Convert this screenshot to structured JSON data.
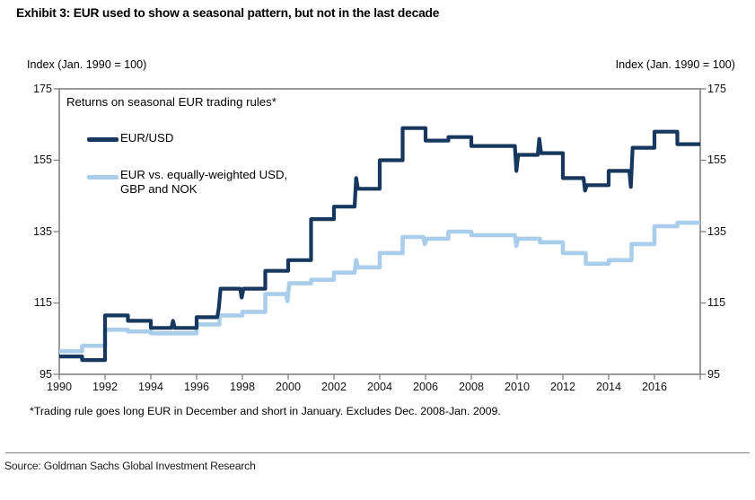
{
  "title": "Exhibit 3: EUR used to show a seasonal pattern, but not in the last decade",
  "axis_notes": {
    "left": "Index (Jan. 1990 = 100)",
    "right": "Index (Jan. 1990 = 100)"
  },
  "chart_subtitle": "Returns on seasonal EUR trading rules*",
  "legend": {
    "items": [
      {
        "label_line1": "EUR/USD",
        "label_line2": "",
        "color": "#17375e"
      },
      {
        "label_line1": "EUR vs. equally-weighted USD,",
        "label_line2": "GBP and NOK",
        "color": "#a9cdea"
      }
    ]
  },
  "footnote": "*Trading rule goes long EUR in December and short in January. Excludes Dec. 2008-Jan. 2009.",
  "source": "Source: Goldman Sachs Global Investment Research",
  "colors": {
    "eur_usd_line": "#17375e",
    "basket_line": "#a9cdea",
    "axis": "#808080",
    "text": "#000000"
  },
  "chart_data": {
    "type": "line",
    "style": "step",
    "title": "Returns on seasonal EUR trading rules*",
    "ylabel_left": "Index (Jan. 1990 = 100)",
    "ylabel_right": "Index (Jan. 1990 = 100)",
    "ylim": [
      95,
      175
    ],
    "yticks": [
      175,
      155,
      135,
      115,
      95
    ],
    "xtick_years": [
      1990,
      1992,
      1994,
      1996,
      1998,
      2000,
      2002,
      2004,
      2006,
      2008,
      2010,
      2012,
      2014,
      2016
    ],
    "x_axis_end": 2018,
    "grid": false,
    "legend_position": "top-left-inside",
    "x": [
      1990,
      1991,
      1992,
      1993,
      1994,
      1995,
      1996,
      1997,
      1998,
      1999,
      2000,
      2001,
      2002,
      2003,
      2004,
      2005,
      2006,
      2007,
      2008,
      2009,
      2010,
      2011,
      2012,
      2013,
      2014,
      2015,
      2016,
      2017
    ],
    "series": [
      {
        "name": "EUR/USD",
        "color": "#17375e",
        "values": [
          100,
          99,
          111.5,
          110,
          108,
          108,
          111,
          119,
          119,
          124,
          127,
          138.5,
          142,
          147,
          155,
          164,
          160.5,
          161.5,
          159,
          159,
          156.5,
          157,
          150,
          148,
          152,
          158.5,
          163,
          159.5
        ],
        "jan_spikes": [
          {
            "at": 1995,
            "v": 110
          },
          {
            "at": 1997,
            "v": 113.5
          },
          {
            "at": 1998,
            "v": 116.5
          },
          {
            "at": 2003,
            "v": 150
          },
          {
            "at": 2010,
            "v": 152
          },
          {
            "at": 2011,
            "v": 161
          },
          {
            "at": 2013,
            "v": 146.5
          },
          {
            "at": 2015,
            "v": 147.5
          }
        ]
      },
      {
        "name": "EUR vs. equally-weighted USD, GBP and NOK",
        "color": "#a9cdea",
        "values": [
          101.5,
          103,
          107.5,
          107,
          106.5,
          106.5,
          109,
          111.5,
          112.5,
          117.5,
          120.5,
          121.5,
          123.5,
          125,
          129,
          133.5,
          133,
          135,
          134,
          134,
          133,
          132,
          129,
          126,
          127,
          131.5,
          136.5,
          137.5
        ],
        "jan_spikes": [
          {
            "at": 2000,
            "v": 115.5
          },
          {
            "at": 2003,
            "v": 127
          },
          {
            "at": 2006,
            "v": 131.5
          },
          {
            "at": 2010,
            "v": 131
          }
        ]
      }
    ]
  }
}
